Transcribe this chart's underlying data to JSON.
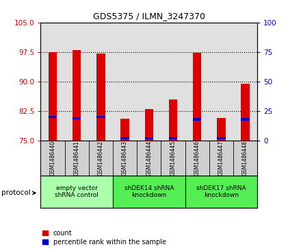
{
  "title": "GDS5375 / ILMN_3247370",
  "samples": [
    "GSM1486440",
    "GSM1486441",
    "GSM1486442",
    "GSM1486443",
    "GSM1486444",
    "GSM1486445",
    "GSM1486446",
    "GSM1486447",
    "GSM1486448"
  ],
  "count_values": [
    97.5,
    97.9,
    97.2,
    80.5,
    83.0,
    85.5,
    97.3,
    80.8,
    89.5
  ],
  "percentile_values": [
    20,
    19,
    20,
    2,
    2,
    2,
    18,
    2,
    18
  ],
  "bar_bottom": 75,
  "ylim_left": [
    75,
    105
  ],
  "ylim_right": [
    0,
    100
  ],
  "yticks_left": [
    75,
    82.5,
    90,
    97.5,
    105
  ],
  "yticks_right": [
    0,
    25,
    50,
    75,
    100
  ],
  "bar_color": "#dd0000",
  "percentile_color": "#0000cc",
  "bar_width": 0.35,
  "groups": [
    {
      "label": "empty vector\nshRNA control",
      "start": 0,
      "end": 3,
      "color": "#aaffaa"
    },
    {
      "label": "shDEK14 shRNA\nknockdown",
      "start": 3,
      "end": 6,
      "color": "#55ee55"
    },
    {
      "label": "shDEK17 shRNA\nknockdown",
      "start": 6,
      "end": 9,
      "color": "#55ee55"
    }
  ],
  "protocol_label": "protocol",
  "legend_count_label": "count",
  "legend_percentile_label": "percentile rank within the sample",
  "tick_color_left": "#cc0000",
  "tick_color_right": "#0000cc",
  "background_color": "#ffffff",
  "plot_bg_color": "#e0e0e0",
  "group_box_color": "#d0d0d0"
}
